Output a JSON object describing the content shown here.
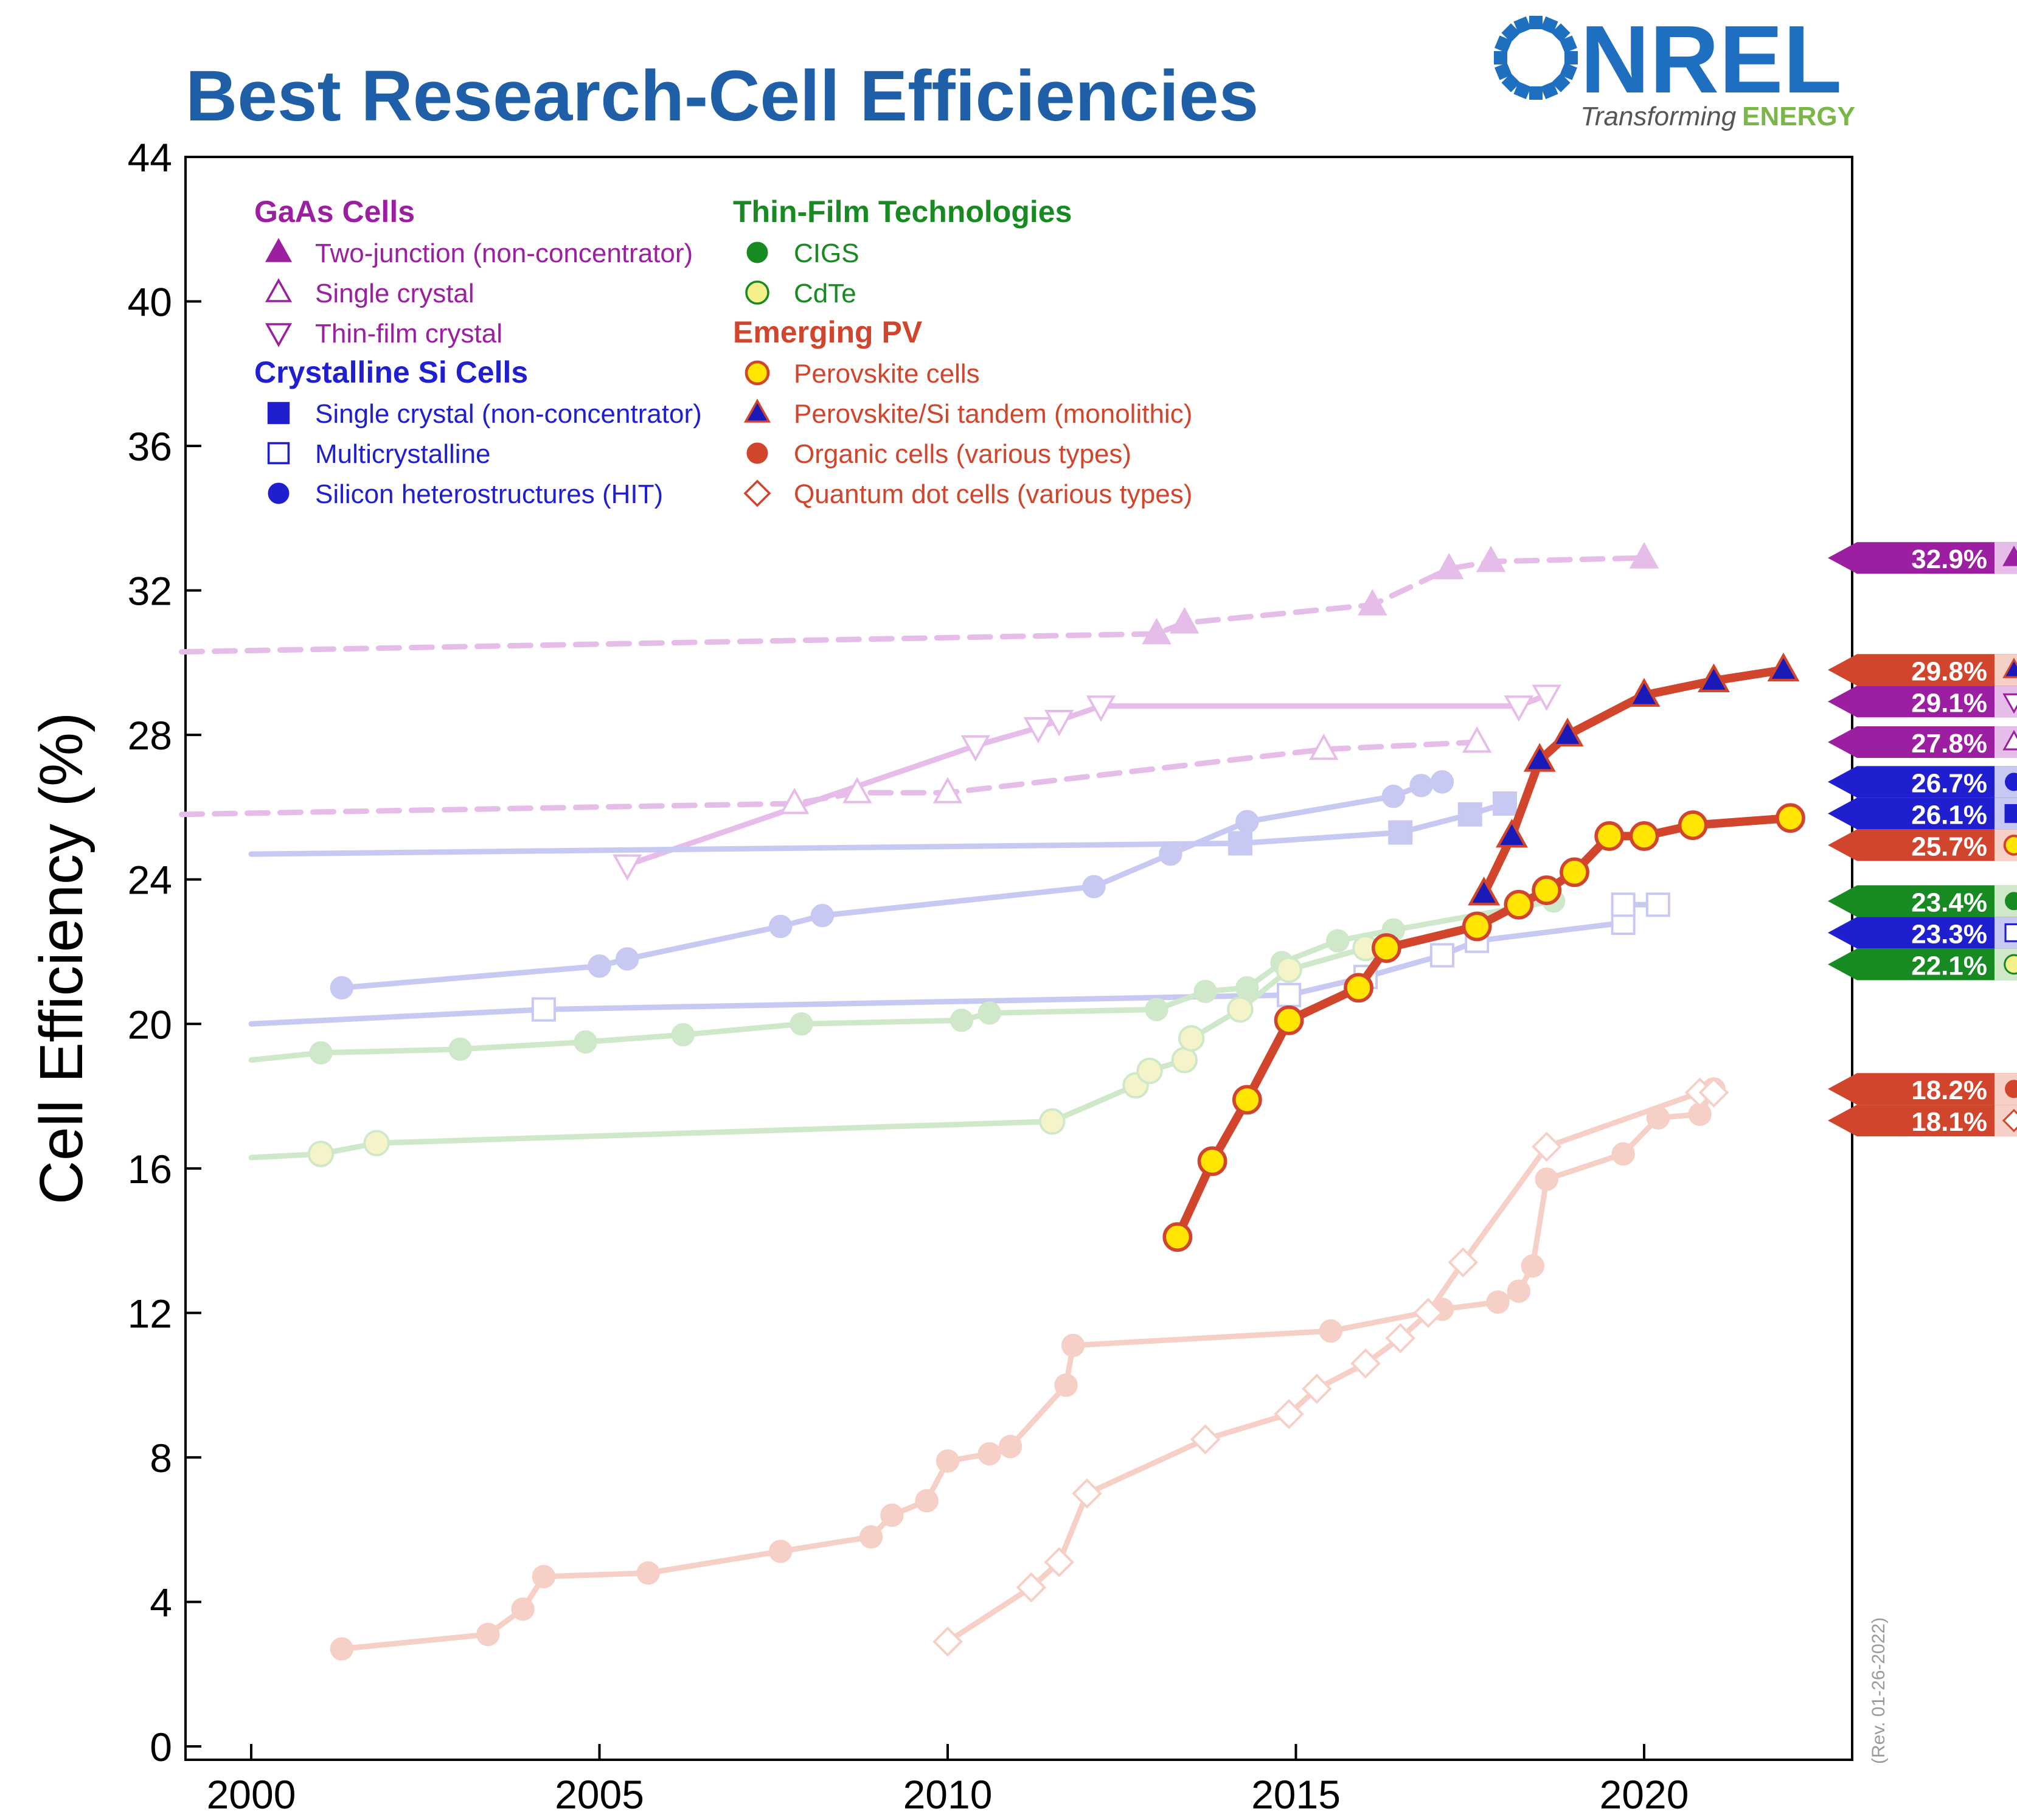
{
  "title": "Best Research-Cell Efficiencies",
  "logo": {
    "name": "NREL",
    "tagline_prefix": "Transforming",
    "tagline_suffix": "ENERGY"
  },
  "revision": "(Rev. 01-26-2022)",
  "colors": {
    "title": "#1f5fa8",
    "gaas": "#9b1fa0",
    "gaas_faded": "#e6bde9",
    "si": "#1f1fd0",
    "si_faded": "#c7c9f2",
    "thinfilm": "#178a21",
    "thinfilm_faded": "#cfe8c9",
    "cdte_fill": "#f5f08a",
    "emerging": "#d0452c",
    "emerging_faded": "#f6cfc6",
    "perovskite_fill": "#ffe500",
    "logo_blue": "#1f6fc0",
    "logo_green": "#7ab648"
  },
  "legend": {
    "groups": [
      {
        "heading": "GaAs Cells",
        "color_key": "gaas",
        "items": [
          {
            "label": "Two-junction (non-concentrator)",
            "marker": "triangle-filled"
          },
          {
            "label": "Single crystal",
            "marker": "triangle-open"
          },
          {
            "label": "Thin-film crystal",
            "marker": "triangle-down-open"
          }
        ]
      },
      {
        "heading": "Crystalline Si Cells",
        "color_key": "si",
        "items": [
          {
            "label": "Single crystal (non-concentrator)",
            "marker": "square-filled"
          },
          {
            "label": "Multicrystalline",
            "marker": "square-open"
          },
          {
            "label": "Silicon heterostructures (HIT)",
            "marker": "circle-filled"
          }
        ]
      },
      {
        "heading": "Thin-Film Technologies",
        "color_key": "thinfilm",
        "items": [
          {
            "label": "CIGS",
            "marker": "circle-filled"
          },
          {
            "label": "CdTe",
            "marker": "circle-yellow"
          }
        ]
      },
      {
        "heading": "Emerging PV",
        "color_key": "emerging",
        "items": [
          {
            "label": "Perovskite cells",
            "marker": "circle-yellow-red"
          },
          {
            "label": "Perovskite/Si tandem (monolithic)",
            "marker": "triangle-blue-red"
          },
          {
            "label": "Organic cells (various types)",
            "marker": "circle-filled"
          },
          {
            "label": "Quantum dot cells (various types)",
            "marker": "diamond-open"
          }
        ]
      }
    ]
  },
  "chart_data": {
    "type": "line",
    "title": "Best Research-Cell Efficiencies",
    "xlabel": "",
    "ylabel": "Cell Efficiency (%)",
    "xlim": [
      1999,
      2023
    ],
    "ylim": [
      0,
      44
    ],
    "xticks": [
      2000,
      2005,
      2010,
      2015,
      2020
    ],
    "yticks": [
      0,
      4,
      8,
      12,
      16,
      20,
      24,
      28,
      32,
      36,
      40,
      44
    ],
    "grid": false,
    "legend_position": "top-left",
    "series": [
      {
        "name": "Two-junction (non-concentrator)",
        "color_key": "gaas_faded",
        "dashed": true,
        "marker": "triangle-filled",
        "faded": true,
        "x": [
          1999,
          2013.0,
          2013.4,
          2016.1,
          2017.2,
          2017.8,
          2020.0
        ],
        "y": [
          30.3,
          30.8,
          31.1,
          31.6,
          32.6,
          32.8,
          32.9
        ],
        "marker_from": 1
      },
      {
        "name": "Thin-film crystal",
        "color_key": "gaas_faded",
        "dashed": false,
        "marker": "triangle-down-open",
        "faded": true,
        "x": [
          2005.4,
          2010.4,
          2011.3,
          2011.6,
          2012.2,
          2018.2,
          2018.6
        ],
        "y": [
          24.4,
          27.7,
          28.2,
          28.4,
          28.8,
          28.8,
          29.1
        ]
      },
      {
        "name": "Single crystal",
        "color_key": "gaas_faded",
        "dashed": true,
        "marker": "triangle-open",
        "faded": true,
        "x": [
          1999,
          2007.8,
          2008.7,
          2010.0,
          2015.4,
          2017.6
        ],
        "y": [
          25.8,
          26.1,
          26.4,
          26.4,
          27.6,
          27.8
        ],
        "marker_from": 1
      },
      {
        "name": "Single crystal (non-concentrator)",
        "color_key": "si_faded",
        "dashed": false,
        "marker": "square-filled",
        "faded": true,
        "x": [
          2000,
          2014.2,
          2016.5,
          2017.5,
          2018.0
        ],
        "y": [
          24.7,
          25.0,
          25.3,
          25.8,
          26.1
        ],
        "marker_from": 1
      },
      {
        "name": "Silicon heterostructures (HIT)",
        "color_key": "si_faded",
        "dashed": false,
        "marker": "circle-filled",
        "faded": true,
        "x": [
          2001.3,
          2005.0,
          2005.4,
          2007.6,
          2008.2,
          2012.1,
          2013.2,
          2014.3,
          2016.4,
          2016.8,
          2017.1
        ],
        "y": [
          21.0,
          21.6,
          21.8,
          22.7,
          23.0,
          23.8,
          24.7,
          25.6,
          26.3,
          26.6,
          26.7
        ]
      },
      {
        "name": "Multicrystalline",
        "color_key": "si_faded",
        "dashed": false,
        "marker": "square-open",
        "faded": true,
        "x": [
          2000,
          2004.2,
          2014.9,
          2016.0,
          2017.1,
          2017.6,
          2019.7,
          2019.7,
          2020.2
        ],
        "y": [
          20.0,
          20.4,
          20.8,
          21.3,
          21.9,
          22.3,
          22.8,
          23.3,
          23.3
        ],
        "marker_from": 1
      },
      {
        "name": "CIGS",
        "color_key": "thinfilm_faded",
        "dashed": false,
        "marker": "circle-filled",
        "faded": true,
        "x": [
          2000,
          2001.0,
          2003.0,
          2004.8,
          2006.2,
          2007.9,
          2010.2,
          2010.6,
          2013.0,
          2013.7,
          2014.3,
          2014.8,
          2015.6,
          2016.4,
          2018.7
        ],
        "y": [
          19.0,
          19.2,
          19.3,
          19.5,
          19.7,
          20.0,
          20.1,
          20.3,
          20.4,
          20.9,
          21.0,
          21.7,
          22.3,
          22.6,
          23.4
        ],
        "marker_from": 1
      },
      {
        "name": "CdTe",
        "color_key": "thinfilm_faded",
        "dashed": false,
        "marker": "circle-yellow",
        "faded": true,
        "x": [
          2000,
          2001.0,
          2001.8,
          2011.5,
          2012.7,
          2012.9,
          2013.4,
          2013.5,
          2014.2,
          2014.9,
          2016.0
        ],
        "y": [
          16.3,
          16.4,
          16.7,
          17.3,
          18.3,
          18.7,
          19.0,
          19.6,
          20.4,
          21.5,
          22.1
        ],
        "marker_from": 1
      },
      {
        "name": "Organic cells (various types)",
        "color_key": "emerging_faded",
        "dashed": false,
        "marker": "circle-filled",
        "faded": true,
        "x": [
          2001.3,
          2003.4,
          2003.9,
          2004.2,
          2005.7,
          2007.6,
          2008.9,
          2009.2,
          2009.7,
          2010.0,
          2010.6,
          2010.9,
          2011.7,
          2011.8,
          2015.5,
          2017.1,
          2017.9,
          2018.2,
          2018.4,
          2018.6,
          2019.7,
          2020.2,
          2020.8,
          2021.0
        ],
        "y": [
          2.7,
          3.1,
          3.8,
          4.7,
          4.8,
          5.4,
          5.8,
          6.4,
          6.8,
          7.9,
          8.1,
          8.3,
          10.0,
          11.1,
          11.5,
          12.1,
          12.3,
          12.6,
          13.3,
          15.7,
          16.4,
          17.4,
          17.5,
          18.2
        ]
      },
      {
        "name": "Quantum dot cells (various types)",
        "color_key": "emerging_faded",
        "dashed": false,
        "marker": "diamond-open",
        "faded": true,
        "x": [
          2010.0,
          2011.2,
          2011.6,
          2012.0,
          2013.7,
          2014.9,
          2015.3,
          2016.0,
          2016.5,
          2016.9,
          2017.4,
          2018.6,
          2020.8,
          2021.0
        ],
        "y": [
          2.9,
          4.4,
          5.1,
          7.0,
          8.5,
          9.2,
          9.9,
          10.6,
          11.3,
          12.0,
          13.4,
          16.6,
          18.1,
          18.1
        ]
      },
      {
        "name": "Perovskite cells",
        "color_key": "emerging",
        "dashed": false,
        "marker": "circle-yellow-red",
        "faded": false,
        "x": [
          2013.3,
          2013.8,
          2014.3,
          2014.9,
          2015.9,
          2016.3,
          2017.6,
          2018.2,
          2018.6,
          2019.0,
          2019.5,
          2020.0,
          2020.7,
          2022.1
        ],
        "y": [
          14.1,
          16.2,
          17.9,
          20.1,
          21.0,
          22.1,
          22.7,
          23.3,
          23.7,
          24.2,
          25.2,
          25.2,
          25.5,
          25.7
        ]
      },
      {
        "name": "Perovskite/Si tandem (monolithic)",
        "color_key": "emerging",
        "dashed": false,
        "marker": "triangle-blue-red",
        "faded": false,
        "x": [
          2017.7,
          2018.1,
          2018.5,
          2018.9,
          2020.0,
          2021.0,
          2022.0
        ],
        "y": [
          23.6,
          25.2,
          27.3,
          28.0,
          29.1,
          29.5,
          29.8
        ]
      }
    ],
    "end_labels": [
      {
        "value": 32.9,
        "text": "32.9%",
        "box_key": "gaas",
        "marker": "triangle-filled",
        "marker_color_key": "gaas"
      },
      {
        "value": 29.8,
        "text": "29.8%",
        "box_key": "emerging",
        "marker": "triangle-blue-red",
        "marker_color_key": "emerging"
      },
      {
        "value": 29.1,
        "text": "29.1%",
        "box_key": "gaas",
        "marker": "triangle-down-open",
        "marker_color_key": "gaas"
      },
      {
        "value": 27.8,
        "text": "27.8%",
        "box_key": "gaas",
        "marker": "triangle-open",
        "marker_color_key": "gaas"
      },
      {
        "value": 26.7,
        "text": "26.7%",
        "box_key": "si",
        "marker": "circle-filled",
        "marker_color_key": "si"
      },
      {
        "value": 26.1,
        "text": "26.1%",
        "box_key": "si",
        "marker": "square-filled",
        "marker_color_key": "si"
      },
      {
        "value": 25.7,
        "text": "25.7%",
        "box_key": "emerging",
        "marker": "circle-yellow-red",
        "marker_color_key": "emerging"
      },
      {
        "value": 23.4,
        "text": "23.4%",
        "box_key": "thinfilm",
        "marker": "circle-filled",
        "marker_color_key": "thinfilm"
      },
      {
        "value": 23.3,
        "text": "23.3%",
        "box_key": "si",
        "marker": "square-open",
        "marker_color_key": "si"
      },
      {
        "value": 22.1,
        "text": "22.1%",
        "box_key": "thinfilm",
        "marker": "circle-yellow",
        "marker_color_key": "thinfilm"
      },
      {
        "value": 18.2,
        "text": "18.2%",
        "box_key": "emerging",
        "marker": "circle-filled",
        "marker_color_key": "emerging"
      },
      {
        "value": 18.1,
        "text": "18.1%",
        "box_key": "emerging",
        "marker": "diamond-open",
        "marker_color_key": "emerging"
      }
    ]
  }
}
